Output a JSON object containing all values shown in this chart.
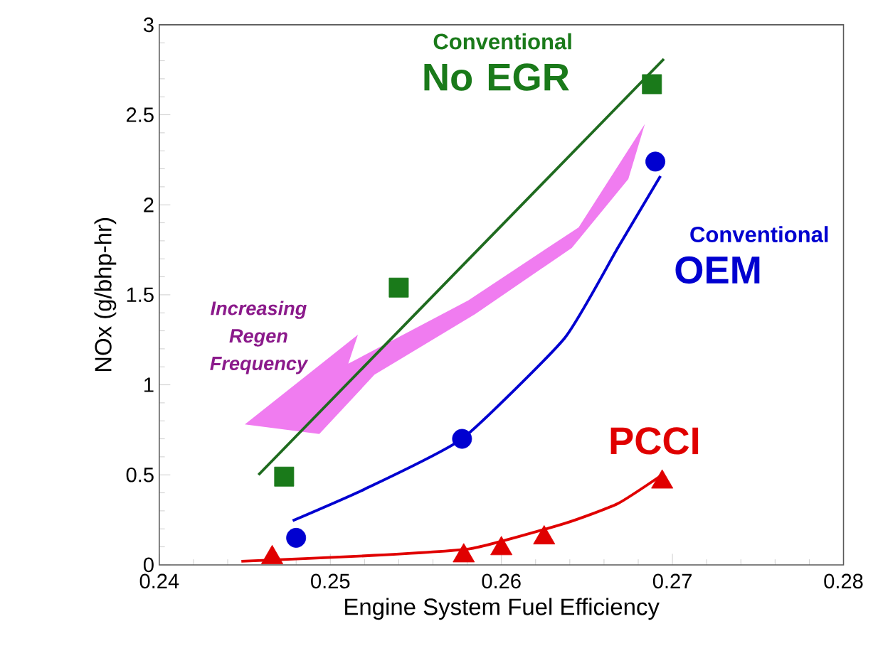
{
  "chart_data": {
    "type": "scatter",
    "xlabel": "Engine System Fuel Efficiency",
    "ylabel": "NOx (g/bhp-hr)",
    "xlim": [
      0.24,
      0.28
    ],
    "xticks": [
      0.24,
      0.25,
      0.26,
      0.27,
      0.28
    ],
    "ylim": [
      0,
      3
    ],
    "yticks": [
      0,
      0.5,
      1,
      1.5,
      2,
      2.5,
      3
    ],
    "grid": false,
    "annotations": [
      "Conventional",
      "No EGR",
      "Conventional",
      "OEM",
      "PCCI",
      "Increasing Regen Frequency"
    ],
    "series": [
      {
        "color": "#1a7a1a",
        "marker": "square",
        "x": [
          0.2473,
          0.254,
          0.2688
        ],
        "values": [
          0.49,
          1.54,
          2.67
        ]
      },
      {
        "type": "line",
        "color": "#1f6b1f",
        "marker": "none",
        "x": [
          0.2458,
          0.2695
        ],
        "values": [
          0.5,
          2.81
        ]
      },
      {
        "color": "#0000d0",
        "marker": "circle",
        "x": [
          0.248,
          0.2577,
          0.269
        ],
        "values": [
          0.15,
          0.7,
          2.24
        ]
      },
      {
        "type": "line",
        "color": "#0000d0",
        "marker": "none",
        "x": [
          0.2478,
          0.252,
          0.2577,
          0.2637,
          0.2668,
          0.2693
        ],
        "values": [
          0.245,
          0.42,
          0.7,
          1.26,
          1.76,
          2.16
        ]
      },
      {
        "color": "#e00000",
        "marker": "triangle",
        "x": [
          0.2466,
          0.2578,
          0.26,
          0.2625,
          0.2694
        ],
        "values": [
          0.04,
          0.05,
          0.09,
          0.15,
          0.46
        ]
      },
      {
        "type": "line",
        "color": "#e00000",
        "marker": "none",
        "x": [
          0.2448,
          0.252,
          0.2582,
          0.2637,
          0.2668,
          0.2694
        ],
        "values": [
          0.02,
          0.05,
          0.09,
          0.23,
          0.34,
          0.5
        ]
      }
    ]
  }
}
